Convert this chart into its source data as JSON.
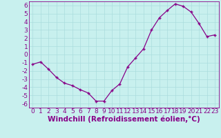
{
  "x": [
    0,
    1,
    2,
    3,
    4,
    5,
    6,
    7,
    8,
    9,
    10,
    11,
    12,
    13,
    14,
    15,
    16,
    17,
    18,
    19,
    20,
    21,
    22,
    23
  ],
  "y": [
    -1.2,
    -0.9,
    -1.8,
    -2.8,
    -3.5,
    -3.8,
    -4.3,
    -4.7,
    -5.7,
    -5.7,
    -4.4,
    -3.6,
    -1.5,
    -0.4,
    0.7,
    3.0,
    4.5,
    5.4,
    6.2,
    5.9,
    5.2,
    3.8,
    2.2,
    2.4
  ],
  "line_color": "#880088",
  "marker": "+",
  "bg_color": "#c8f0ee",
  "grid_color": "#aadddd",
  "xlabel": "Windchill (Refroidissement éolien,°C)",
  "xlim": [
    -0.5,
    23.5
  ],
  "ylim": [
    -6.5,
    6.5
  ],
  "yticks": [
    -6,
    -5,
    -4,
    -3,
    -2,
    -1,
    0,
    1,
    2,
    3,
    4,
    5,
    6
  ],
  "xticks": [
    0,
    1,
    2,
    3,
    4,
    5,
    6,
    7,
    8,
    9,
    10,
    11,
    12,
    13,
    14,
    15,
    16,
    17,
    18,
    19,
    20,
    21,
    22,
    23
  ],
  "label_color": "#880088",
  "tick_color": "#880088",
  "tick_font_size": 6.5,
  "xlabel_font_size": 7.5,
  "linewidth": 0.9,
  "markersize": 3.5
}
